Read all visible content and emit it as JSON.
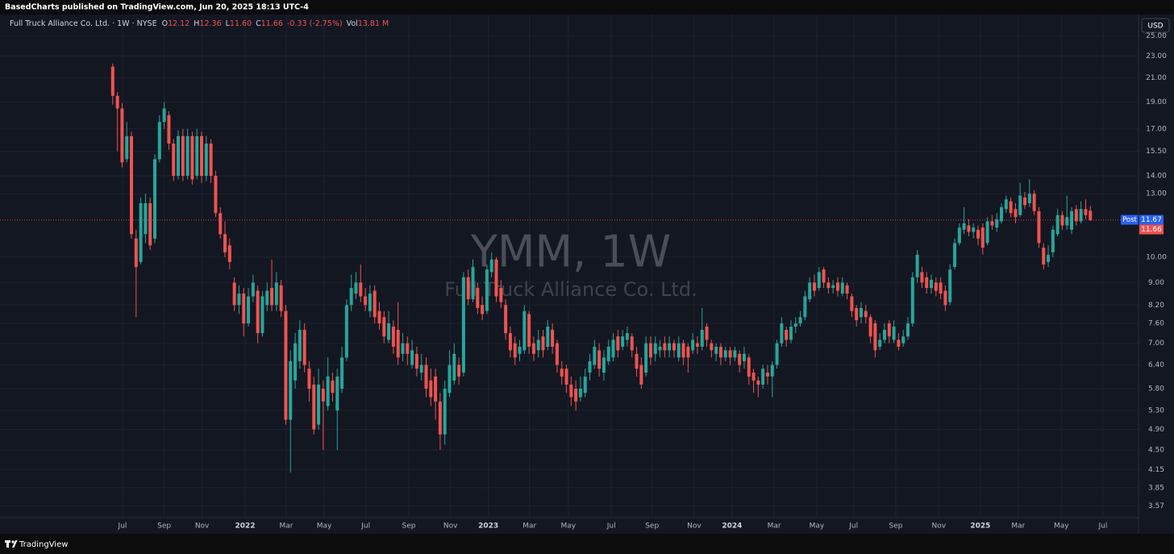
{
  "header": {
    "publisher": "BasedCharts published on TradingView.com, Jun 20, 2025 18:13 UTC-4"
  },
  "footer": {
    "brand": "TradingView"
  },
  "chart_data": {
    "type": "candlestick",
    "title": "Full Truck Alliance Co. Ltd. · 1W · NYSE",
    "legend": {
      "o_label": "O",
      "o": "12.12",
      "h_label": "H",
      "h": "12.36",
      "l_label": "L",
      "l": "11.60",
      "c_label": "C",
      "c": "11.66",
      "change": "-0.33 (-2.75%)",
      "vol_label": "Vol",
      "vol": "13.81 M"
    },
    "watermark": "YMM, 1W",
    "watermark_subtitle": "Full Truck Alliance Co. Ltd.",
    "currency": "USD",
    "last_price": 11.66,
    "post_label": "Post",
    "post_price": 11.67,
    "up_color": "#26a69a",
    "down_color": "#ef5350",
    "log_scale": true,
    "grid": true,
    "xlim": [
      -24.1,
      219.3
    ],
    "xticks": [
      {
        "value": 2.1,
        "label": "Jul"
      },
      {
        "value": 11.0,
        "label": "Sep"
      },
      {
        "value": 19.1,
        "label": "Nov"
      },
      {
        "value": 28.3,
        "label": "2022"
      },
      {
        "value": 37.1,
        "label": "Mar"
      },
      {
        "value": 45.2,
        "label": "May"
      },
      {
        "value": 54.1,
        "label": "Jul"
      },
      {
        "value": 63.3,
        "label": "Sep"
      },
      {
        "value": 72.2,
        "label": "Nov"
      },
      {
        "value": 80.3,
        "label": "2023"
      },
      {
        "value": 89.1,
        "label": "Mar"
      },
      {
        "value": 97.4,
        "label": "May"
      },
      {
        "value": 106.6,
        "label": "Jul"
      },
      {
        "value": 115.3,
        "label": "Sep"
      },
      {
        "value": 124.3,
        "label": "Nov"
      },
      {
        "value": 132.4,
        "label": "2024"
      },
      {
        "value": 141.4,
        "label": "Mar"
      },
      {
        "value": 150.5,
        "label": "May"
      },
      {
        "value": 158.4,
        "label": "Jul"
      },
      {
        "value": 167.4,
        "label": "Sep"
      },
      {
        "value": 176.6,
        "label": "Nov"
      },
      {
        "value": 185.5,
        "label": "2025"
      },
      {
        "value": 193.6,
        "label": "Mar"
      },
      {
        "value": 202.8,
        "label": "May"
      },
      {
        "value": 211.7,
        "label": "Jul"
      }
    ],
    "ylim": [
      3.4,
      27.3
    ],
    "yticks": [
      {
        "value": 25,
        "label": "25.00"
      },
      {
        "value": 23,
        "label": "23.00"
      },
      {
        "value": 21,
        "label": "21.00"
      },
      {
        "value": 19,
        "label": "19.00"
      },
      {
        "value": 17,
        "label": "17.00"
      },
      {
        "value": 15.5,
        "label": "15.50"
      },
      {
        "value": 14,
        "label": "14.00"
      },
      {
        "value": 13,
        "label": "13.00"
      },
      {
        "value": 10,
        "label": "10.00"
      },
      {
        "value": 9,
        "label": "9.00"
      },
      {
        "value": 8.2,
        "label": "8.20"
      },
      {
        "value": 7.6,
        "label": "7.60"
      },
      {
        "value": 7,
        "label": "7.00"
      },
      {
        "value": 6.4,
        "label": "6.40"
      },
      {
        "value": 5.8,
        "label": "5.80"
      },
      {
        "value": 5.3,
        "label": "5.30"
      },
      {
        "value": 4.9,
        "label": "4.90"
      },
      {
        "value": 4.5,
        "label": "4.50"
      },
      {
        "value": 4.15,
        "label": "4.15"
      },
      {
        "value": 3.85,
        "label": "3.85"
      },
      {
        "value": 3.57,
        "label": "3.57"
      }
    ],
    "open": [
      22.0,
      19.5,
      18.5,
      15.0,
      16.5,
      10.8,
      9.8,
      11.0,
      12.5,
      10.8,
      15.0,
      17.5,
      18.0,
      16.0,
      14.0,
      16.5,
      14.0,
      16.5,
      14.0,
      16.5,
      14.0,
      16.0,
      14.0,
      12.0,
      11.0,
      10.5,
      9.0,
      8.2,
      8.6,
      7.6,
      8.5,
      8.7,
      7.3,
      8.2,
      8.8,
      8.2,
      8.9,
      8.0,
      5.1,
      6.0,
      6.5,
      7.4,
      6.3,
      5.9,
      5.0,
      5.8,
      5.4,
      6.0,
      5.3,
      5.8,
      6.6,
      8.2,
      8.6,
      9.0,
      8.5,
      8.0,
      8.7,
      8.0,
      7.8,
      7.1,
      7.5,
      7.4,
      6.7,
      7.0,
      6.4,
      6.7,
      6.2,
      6.4,
      6.0,
      6.1,
      5.5,
      4.8,
      5.7,
      6.0,
      6.4,
      6.2,
      9.2,
      8.4,
      8.8,
      8.2,
      8.0,
      9.4,
      9.9,
      8.8,
      8.2,
      7.3,
      7.0,
      6.7,
      6.8,
      7.9,
      7.0,
      6.8,
      7.2,
      6.9,
      7.4,
      7.0,
      6.3,
      6.3,
      5.9,
      5.8,
      5.6,
      5.7,
      6.2,
      6.4,
      6.8,
      6.2,
      6.5,
      6.6,
      7.2,
      6.9,
      7.1,
      7.2,
      6.7,
      6.4,
      6.2,
      7.0,
      6.7,
      6.8,
      7.0,
      6.8,
      7.0,
      6.6,
      7.0,
      6.9,
      6.8,
      7.0,
      6.9,
      7.5,
      7.0,
      6.7,
      6.9,
      6.6,
      6.8,
      6.6,
      6.7,
      6.5,
      6.6,
      6.2,
      6.0,
      5.9,
      6.2,
      6.1,
      6.4,
      7.0,
      7.4,
      7.1,
      7.5,
      7.6,
      7.8,
      8.4,
      9.0,
      8.8,
      9.5,
      9.0,
      8.8,
      9.0,
      8.6,
      8.9,
      8.5,
      8.1,
      7.8,
      8.0,
      7.8,
      7.6,
      6.9,
      7.1,
      7.6,
      7.1,
      7.1,
      7.0,
      7.2,
      7.6,
      9.2,
      9.4,
      9.2,
      8.8,
      9.0,
      9.0,
      8.7,
      8.3,
      9.6,
      10.6,
      11.2,
      11.4,
      11.1,
      11.2,
      11.3,
      10.6,
      11.6,
      11.3,
      11.6,
      12.2,
      12.6,
      12.2,
      11.9,
      12.8,
      12.5,
      13.0,
      12.1,
      10.4,
      9.8,
      10.2,
      11.0,
      11.9,
      11.4,
      11.2,
      12.2,
      11.6,
      12.2,
      12.12
    ],
    "high": [
      22.3,
      19.8,
      18.9,
      17.5,
      16.8,
      11.2,
      12.8,
      13.0,
      12.8,
      15.3,
      18.0,
      19.0,
      18.3,
      16.3,
      16.9,
      17.0,
      17.0,
      16.8,
      17.0,
      16.8,
      16.5,
      16.3,
      14.3,
      12.3,
      11.6,
      10.8,
      9.2,
      8.9,
      8.8,
      8.8,
      9.3,
      8.9,
      8.7,
      9.0,
      9.9,
      9.4,
      9.1,
      8.2,
      6.8,
      7.3,
      7.7,
      7.6,
      6.5,
      6.1,
      6.3,
      6.0,
      6.6,
      6.2,
      6.3,
      6.9,
      8.4,
      9.3,
      9.4,
      9.7,
      8.8,
      8.9,
      8.9,
      8.3,
      8.0,
      8.0,
      7.7,
      8.3,
      7.3,
      7.2,
      7.1,
      6.9,
      6.7,
      6.6,
      6.3,
      6.3,
      5.7,
      6.0,
      6.8,
      7.0,
      6.6,
      9.4,
      9.5,
      9.9,
      9.0,
      8.5,
      9.7,
      10.2,
      10.0,
      9.1,
      8.4,
      7.5,
      7.2,
      7.1,
      8.2,
      8.0,
      7.2,
      7.4,
      7.4,
      7.7,
      7.6,
      7.1,
      6.5,
      6.4,
      6.1,
      6.0,
      6.1,
      6.3,
      6.7,
      7.1,
      7.0,
      6.8,
      7.1,
      7.3,
      7.4,
      7.4,
      7.5,
      7.3,
      6.9,
      6.6,
      7.2,
      7.2,
      7.2,
      7.1,
      7.2,
      7.2,
      7.1,
      7.2,
      7.1,
      7.0,
      7.3,
      7.2,
      8.1,
      7.6,
      7.1,
      7.0,
      7.0,
      6.9,
      6.9,
      6.9,
      6.8,
      6.9,
      6.7,
      6.3,
      6.1,
      6.4,
      6.4,
      6.5,
      7.1,
      7.8,
      7.5,
      7.7,
      7.8,
      8.0,
      8.7,
      9.2,
      9.3,
      9.6,
      9.6,
      9.2,
      9.1,
      9.2,
      9.2,
      9.0,
      8.6,
      8.2,
      8.3,
      8.2,
      7.9,
      7.7,
      7.3,
      7.6,
      7.7,
      7.7,
      7.3,
      7.4,
      7.8,
      9.4,
      10.3,
      9.6,
      9.4,
      9.3,
      9.2,
      9.2,
      8.9,
      9.7,
      10.8,
      11.5,
      12.3,
      11.7,
      11.5,
      11.4,
      11.5,
      11.8,
      11.9,
      12.0,
      12.5,
      12.9,
      12.8,
      12.5,
      13.6,
      13.1,
      13.8,
      13.2,
      12.3,
      10.6,
      10.5,
      11.4,
      12.2,
      12.1,
      12.9,
      12.3,
      12.4,
      12.6,
      12.7,
      12.36
    ],
    "low": [
      18.8,
      15.5,
      14.5,
      14.8,
      10.8,
      7.8,
      9.7,
      10.6,
      10.3,
      10.6,
      14.8,
      17.0,
      15.6,
      13.7,
      13.8,
      13.7,
      13.8,
      13.5,
      13.8,
      13.6,
      13.7,
      13.6,
      11.8,
      10.8,
      10.0,
      9.5,
      8.0,
      7.9,
      7.2,
      7.5,
      8.3,
      7.0,
      7.2,
      8.0,
      8.0,
      8.0,
      7.8,
      5.0,
      4.1,
      5.8,
      6.3,
      6.2,
      5.5,
      4.8,
      4.9,
      4.5,
      5.3,
      5.5,
      4.5,
      5.7,
      6.5,
      8.0,
      8.4,
      8.3,
      8.0,
      7.8,
      7.6,
      7.4,
      7.0,
      7.0,
      6.7,
      6.4,
      6.5,
      6.4,
      6.3,
      6.1,
      6.0,
      5.6,
      5.4,
      5.1,
      4.5,
      4.6,
      5.6,
      5.9,
      5.9,
      6.1,
      8.2,
      8.3,
      7.9,
      7.7,
      7.9,
      9.2,
      8.3,
      8.1,
      7.1,
      6.6,
      6.4,
      6.5,
      6.7,
      6.7,
      6.5,
      6.6,
      6.6,
      6.8,
      6.7,
      6.2,
      5.9,
      5.7,
      5.4,
      5.3,
      5.5,
      5.6,
      6.0,
      6.3,
      6.1,
      6.0,
      6.4,
      6.5,
      6.6,
      6.8,
      6.9,
      6.6,
      6.1,
      5.8,
      6.1,
      6.4,
      6.5,
      6.6,
      6.6,
      6.6,
      6.6,
      6.5,
      6.4,
      6.2,
      6.7,
      6.7,
      6.8,
      6.9,
      6.6,
      6.5,
      6.4,
      6.5,
      6.4,
      6.5,
      6.2,
      6.3,
      5.9,
      5.7,
      5.6,
      5.8,
      5.9,
      5.6,
      6.3,
      6.9,
      6.9,
      7.0,
      7.3,
      7.5,
      7.7,
      8.3,
      8.5,
      8.7,
      8.8,
      8.6,
      8.6,
      8.5,
      8.5,
      8.4,
      7.8,
      7.5,
      7.6,
      7.6,
      7.0,
      6.6,
      6.8,
      7.0,
      7.0,
      7.0,
      6.8,
      6.9,
      7.1,
      7.5,
      9.0,
      8.8,
      8.6,
      8.6,
      8.5,
      8.4,
      8.0,
      8.2,
      9.5,
      10.5,
      11.0,
      10.9,
      10.8,
      10.5,
      10.1,
      10.5,
      11.2,
      11.1,
      11.5,
      12.0,
      11.8,
      11.5,
      11.8,
      12.2,
      12.3,
      11.9,
      10.4,
      9.5,
      9.6,
      10.0,
      10.9,
      11.2,
      11.2,
      11.0,
      11.4,
      11.5,
      11.7,
      11.6
    ],
    "close": [
      19.5,
      18.5,
      14.8,
      16.5,
      11.0,
      9.6,
      12.5,
      12.5,
      10.5,
      15.0,
      17.5,
      18.5,
      16.0,
      14.0,
      16.5,
      14.0,
      16.5,
      13.8,
      16.5,
      14.0,
      16.0,
      14.0,
      12.0,
      11.0,
      10.2,
      9.8,
      8.2,
      8.6,
      7.6,
      8.5,
      9.0,
      7.3,
      8.5,
      8.7,
      8.2,
      9.0,
      8.0,
      5.1,
      6.5,
      7.0,
      7.4,
      6.4,
      5.8,
      4.9,
      5.9,
      5.5,
      6.1,
      5.7,
      6.1,
      6.6,
      8.2,
      8.8,
      9.0,
      8.5,
      8.2,
      8.6,
      7.8,
      7.6,
      7.2,
      7.6,
      6.9,
      6.6,
      7.0,
      6.7,
      6.8,
      6.3,
      6.4,
      5.8,
      5.6,
      5.5,
      4.8,
      5.8,
      6.4,
      6.7,
      6.1,
      9.2,
      8.4,
      9.6,
      8.1,
      7.9,
      9.5,
      9.9,
      8.5,
      8.3,
      7.3,
      6.8,
      6.6,
      6.9,
      8.0,
      6.9,
      6.7,
      7.1,
      6.8,
      7.5,
      6.9,
      6.4,
      6.1,
      5.9,
      5.6,
      5.5,
      5.8,
      6.1,
      6.5,
      6.9,
      6.3,
      6.6,
      6.9,
      7.1,
      6.8,
      7.2,
      7.3,
      6.8,
      6.3,
      5.9,
      7.0,
      6.6,
      7.0,
      6.9,
      6.8,
      7.0,
      6.8,
      7.0,
      6.6,
      6.6,
      7.1,
      6.9,
      7.4,
      7.1,
      6.8,
      6.9,
      6.6,
      6.8,
      6.6,
      6.8,
      6.4,
      6.7,
      6.1,
      6.0,
      5.9,
      6.3,
      6.1,
      6.4,
      7.0,
      7.6,
      7.1,
      7.5,
      7.6,
      7.8,
      8.5,
      9.0,
      8.7,
      9.4,
      9.0,
      8.8,
      8.9,
      8.7,
      9.0,
      8.6,
      8.0,
      7.7,
      8.1,
      7.8,
      7.2,
      6.8,
      7.1,
      7.4,
      7.2,
      7.5,
      6.9,
      7.2,
      7.6,
      9.2,
      10.1,
      9.0,
      8.8,
      9.1,
      8.7,
      8.6,
      8.2,
      9.5,
      10.6,
      11.3,
      11.5,
      11.1,
      11.3,
      10.8,
      10.4,
      11.6,
      11.4,
      11.7,
      12.3,
      12.7,
      12.0,
      11.8,
      12.9,
      12.4,
      13.0,
      12.1,
      10.6,
      9.7,
      10.1,
      11.2,
      11.9,
      11.4,
      11.8,
      12.1,
      11.6,
      12.2,
      11.9,
      11.66
    ]
  }
}
